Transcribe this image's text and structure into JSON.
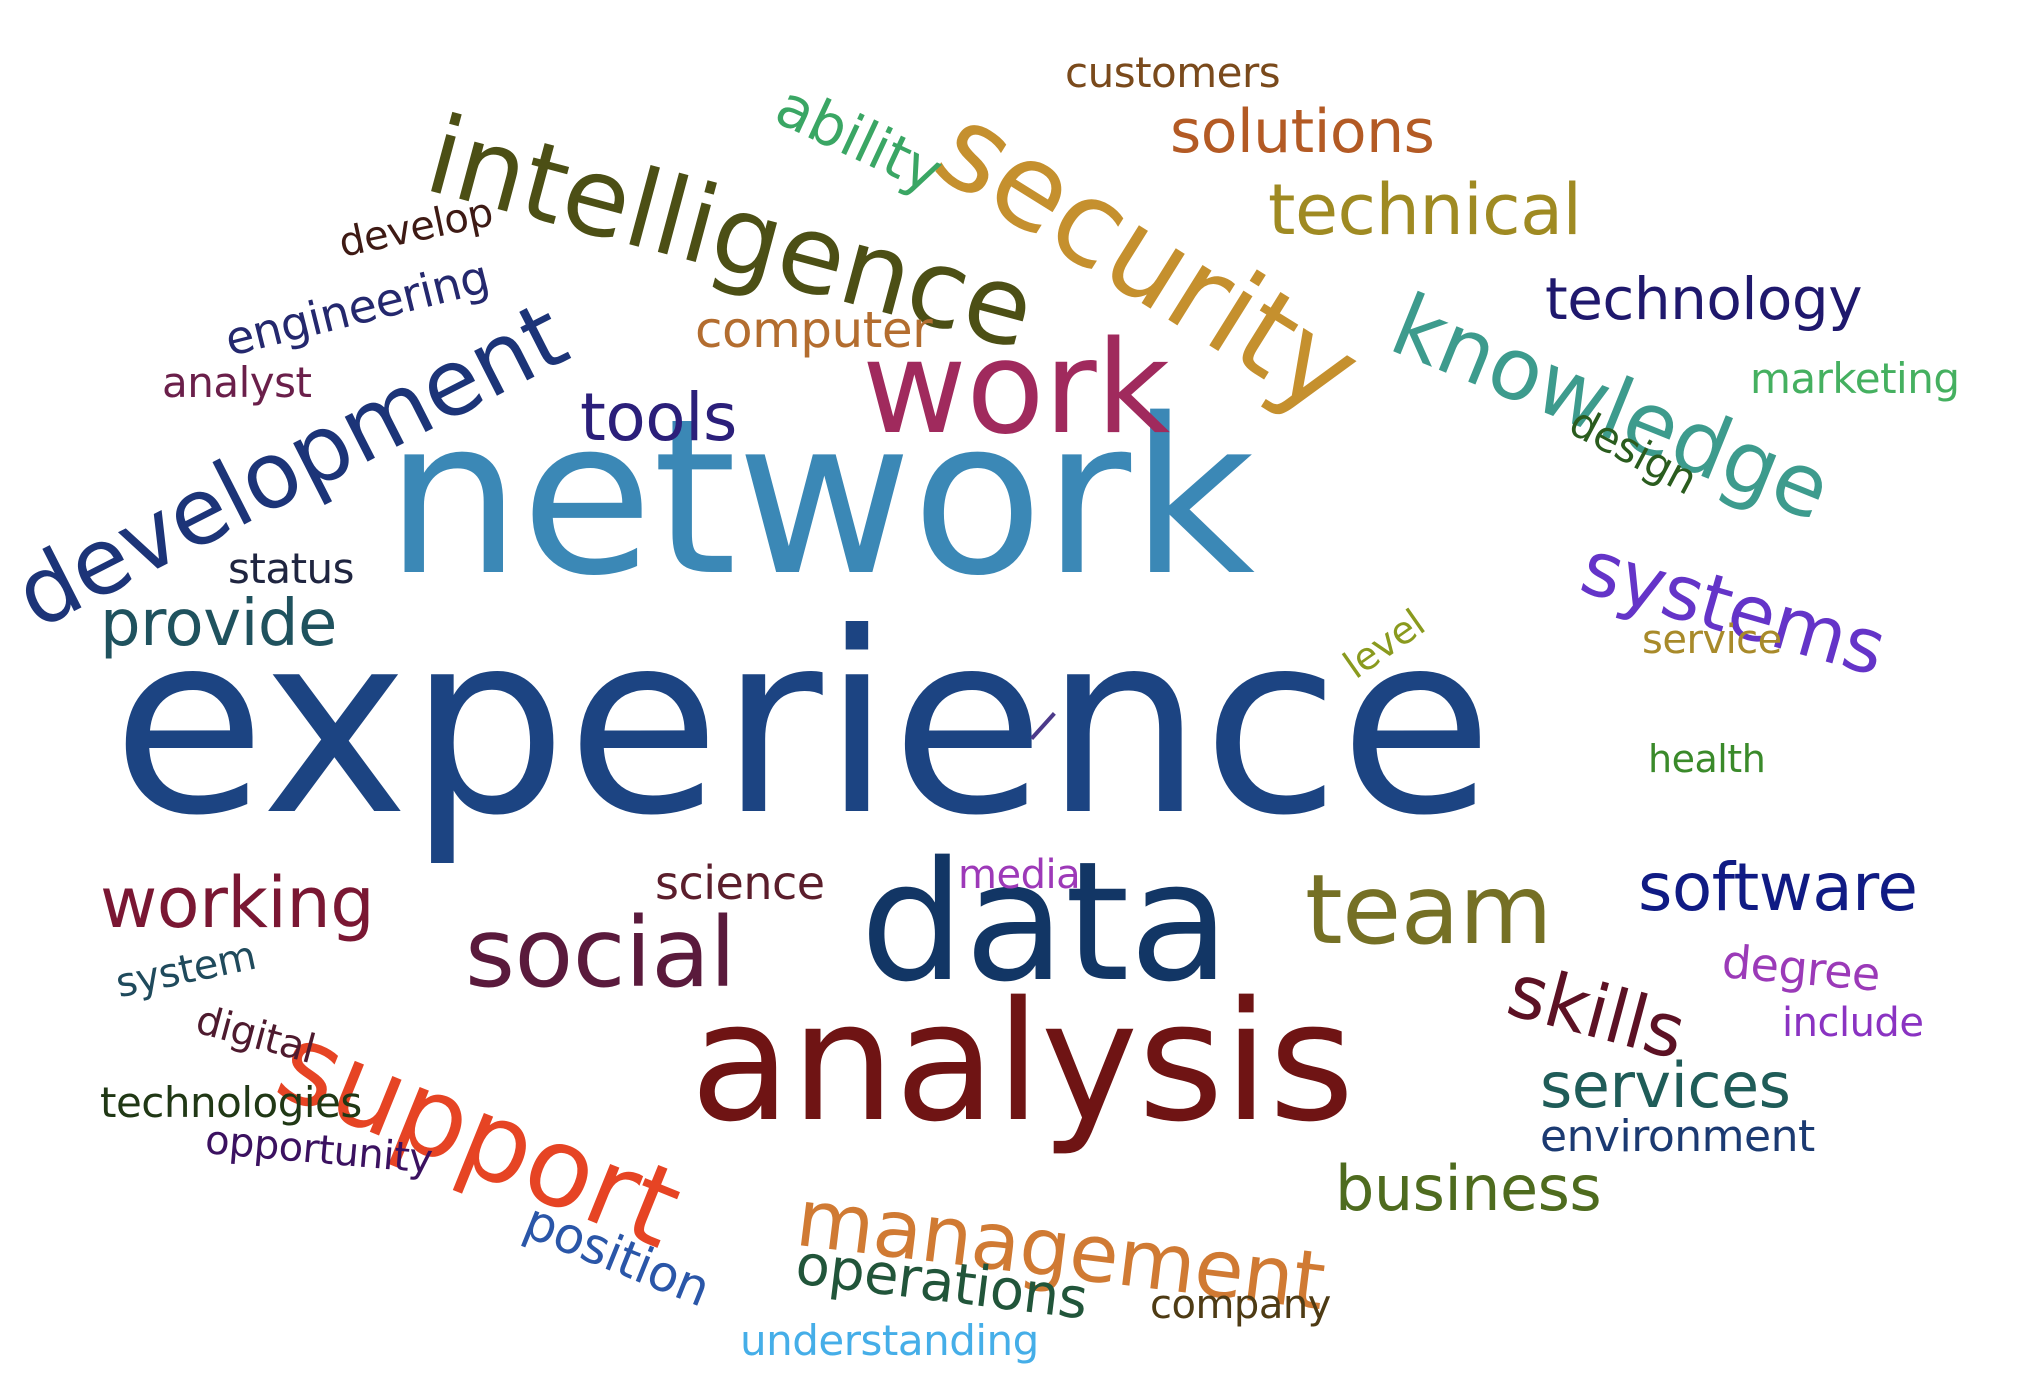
{
  "words": [
    {
      "text": "experience",
      "color": "#1c4482"
    },
    {
      "text": "network",
      "color": "#3b88b6"
    },
    {
      "text": "data",
      "color": "#123665"
    },
    {
      "text": "analysis",
      "color": "#6f1414"
    },
    {
      "text": "work",
      "color": "#a02a5d"
    },
    {
      "text": "security",
      "color": "#c5902e"
    },
    {
      "text": "intelligence",
      "color": "#4c4f15"
    },
    {
      "text": "development",
      "color": "#1c3478"
    },
    {
      "text": "knowledge",
      "color": "#3d9b8d"
    },
    {
      "text": "support",
      "color": "#e64424"
    },
    {
      "text": "social",
      "color": "#5a1a3c"
    },
    {
      "text": "management",
      "color": "#d07a33"
    },
    {
      "text": "team",
      "color": "#757025"
    },
    {
      "text": "systems",
      "color": "#6434c8"
    },
    {
      "text": "software",
      "color": "#101b84"
    },
    {
      "text": "skills",
      "color": "#5c1124"
    },
    {
      "text": "working",
      "color": "#7a1733"
    },
    {
      "text": "technical",
      "color": "#9f8a22"
    },
    {
      "text": "solutions",
      "color": "#b35a24"
    },
    {
      "text": "technology",
      "color": "#1f186d"
    },
    {
      "text": "services",
      "color": "#1f5c58"
    },
    {
      "text": "business",
      "color": "#4e6b1e"
    },
    {
      "text": "operations",
      "color": "#21553a"
    },
    {
      "text": "tools",
      "color": "#2b1f7a"
    },
    {
      "text": "provide",
      "color": "#1f525e"
    },
    {
      "text": "ability",
      "color": "#3aa664"
    },
    {
      "text": "computer",
      "color": "#b36d2f"
    },
    {
      "text": "engineering",
      "color": "#24286e"
    },
    {
      "text": "customers",
      "color": "#7a4a1c"
    },
    {
      "text": "position",
      "color": "#2a56a8"
    },
    {
      "text": "environment",
      "color": "#1b3a72"
    },
    {
      "text": "technologies",
      "color": "#203815"
    },
    {
      "text": "opportunity",
      "color": "#3b1160"
    },
    {
      "text": "understanding",
      "color": "#45aee8"
    },
    {
      "text": "company",
      "color": "#4e3b14"
    },
    {
      "text": "science",
      "color": "#5b1e2c"
    },
    {
      "text": "media",
      "color": "#9d39b8"
    },
    {
      "text": "degree",
      "color": "#9b3ab8"
    },
    {
      "text": "include",
      "color": "#8a33c2"
    },
    {
      "text": "marketing",
      "color": "#45b060"
    },
    {
      "text": "design",
      "color": "#2a5c1e"
    },
    {
      "text": "service",
      "color": "#a88a2a"
    },
    {
      "text": "health",
      "color": "#3a8a2a"
    },
    {
      "text": "level",
      "color": "#8a9a1e"
    },
    {
      "text": "status",
      "color": "#1f2540"
    },
    {
      "text": "analyst",
      "color": "#6a1f4a"
    },
    {
      "text": "develop",
      "color": "#3e1a14"
    },
    {
      "text": "system",
      "color": "#1f4a5c"
    },
    {
      "text": "digital",
      "color": "#4e1a2e"
    }
  ]
}
